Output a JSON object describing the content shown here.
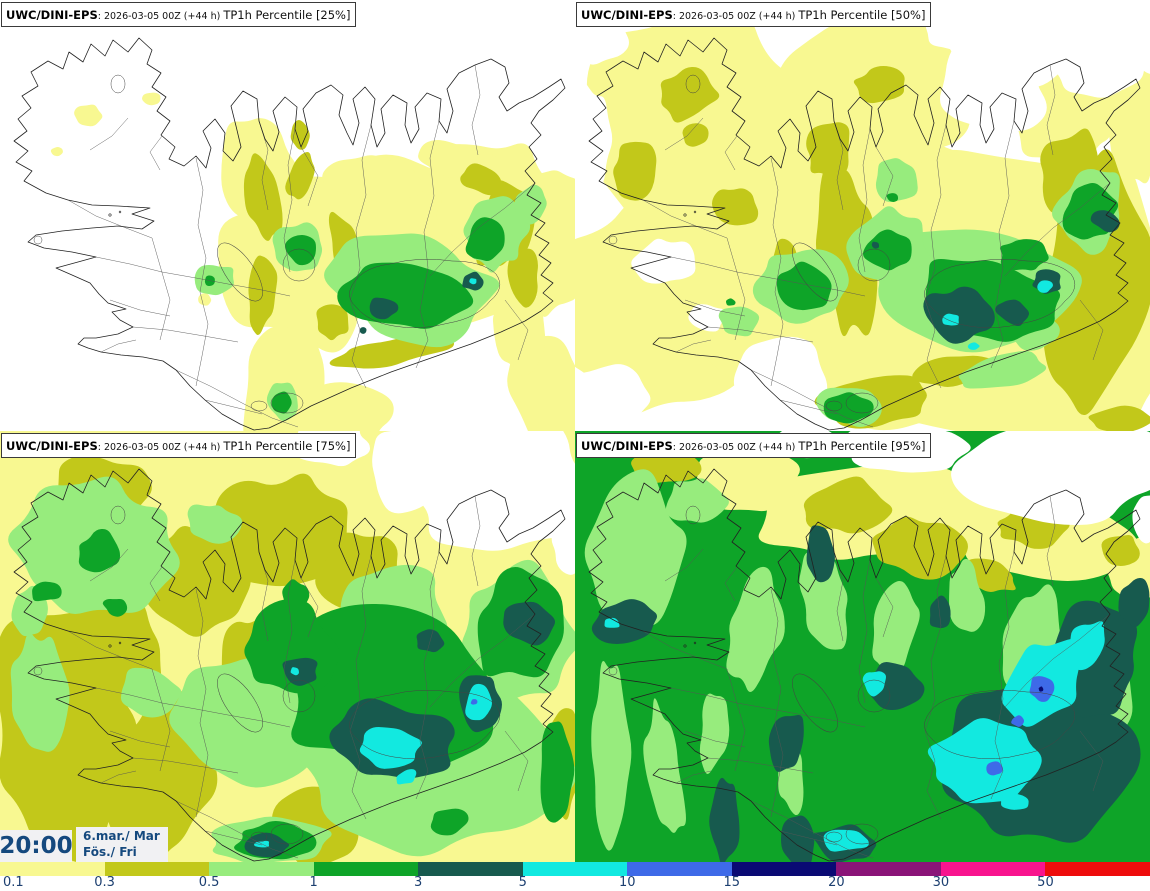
{
  "panels": [
    {
      "model": "UWC/DINI-EPS",
      "run": ": 2026-03-05 00Z (+44 h) ",
      "product": "TP1h Percentile [25%]",
      "percentile": "25%"
    },
    {
      "model": "UWC/DINI-EPS",
      "run": ": 2026-03-05 00Z (+44 h) ",
      "product": "TP1h Percentile [50%]",
      "percentile": "50%"
    },
    {
      "model": "UWC/DINI-EPS",
      "run": ": 2026-03-05 00Z (+44 h) ",
      "product": "TP1h Percentile [75%]",
      "percentile": "75%"
    },
    {
      "model": "UWC/DINI-EPS",
      "run": ": 2026-03-05 00Z (+44 h) ",
      "product": "TP1h Percentile [95%]",
      "percentile": "95%"
    }
  ],
  "time_box": {
    "time": "20:00",
    "date": "6.mar./ Mar",
    "day": "Fös./ Fri"
  },
  "colorbar": {
    "ticks": [
      "0.1",
      "0.3",
      "0.5",
      "1",
      "3",
      "5",
      "10",
      "15",
      "20",
      "30",
      "50"
    ],
    "colors": [
      "#F8F891",
      "#C2C81A",
      "#97EC7D",
      "#0EA428",
      "#175A4E",
      "#12E9E0",
      "#3E6AE8",
      "#0A0A74",
      "#8A1478",
      "#F8148E",
      "#EE0C0C"
    ],
    "label_color": "#1C3F70"
  },
  "map": {
    "region": "Iceland",
    "coast_color": "#222222",
    "boundary_color": "#555555",
    "background": "#FFFFFF"
  }
}
